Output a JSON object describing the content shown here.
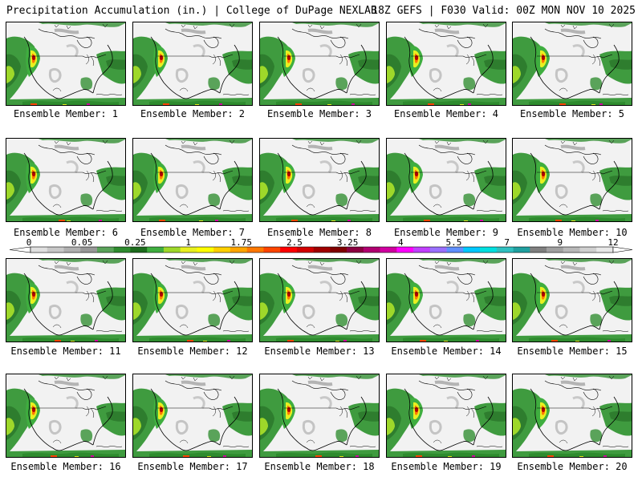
{
  "header": {
    "left": "Precipitation Accumulation (in.) | College of DuPage NEXLAB",
    "right": "18Z GEFS | F030 Valid: 00Z MON NOV 10 2025"
  },
  "colorbar": {
    "tick_labels": [
      "0",
      "0.05",
      "0.25",
      "1",
      "1.75",
      "2.5",
      "3.25",
      "4",
      "5.5",
      "7",
      "9",
      "12"
    ],
    "colors": [
      "#e0e0e0",
      "#c8c8c8",
      "#b0b0b0",
      "#989898",
      "#5aa35a",
      "#2e8b2e",
      "#1d6b1d",
      "#3fae3f",
      "#9ed82a",
      "#e8f020",
      "#ffff00",
      "#ffd000",
      "#ffa500",
      "#ff7800",
      "#ff4500",
      "#ff0000",
      "#d20000",
      "#a00000",
      "#800000",
      "#8b0040",
      "#b00070",
      "#d000a0",
      "#ff00ff",
      "#c040ff",
      "#9a70ff",
      "#6090ff",
      "#00c8ff",
      "#00e0e0",
      "#30c0c0",
      "#20a0a0",
      "#808080",
      "#a0a0a0",
      "#b8b8b8",
      "#d0d0d0",
      "#e8e8e8"
    ]
  },
  "panels": [
    {
      "member": "Ensemble Member: 1"
    },
    {
      "member": "Ensemble Member: 2"
    },
    {
      "member": "Ensemble Member: 3"
    },
    {
      "member": "Ensemble Member: 4"
    },
    {
      "member": "Ensemble Member: 5"
    },
    {
      "member": "Ensemble Member: 6"
    },
    {
      "member": "Ensemble Member: 7"
    },
    {
      "member": "Ensemble Member: 8"
    },
    {
      "member": "Ensemble Member: 9"
    },
    {
      "member": "Ensemble Member: 10"
    },
    {
      "member": "Ensemble Member: 11"
    },
    {
      "member": "Ensemble Member: 12"
    },
    {
      "member": "Ensemble Member: 13"
    },
    {
      "member": "Ensemble Member: 14"
    },
    {
      "member": "Ensemble Member: 15"
    },
    {
      "member": "Ensemble Member: 16"
    },
    {
      "member": "Ensemble Member: 17"
    },
    {
      "member": "Ensemble Member: 18"
    },
    {
      "member": "Ensemble Member: 19"
    },
    {
      "member": "Ensemble Member: 20"
    }
  ]
}
